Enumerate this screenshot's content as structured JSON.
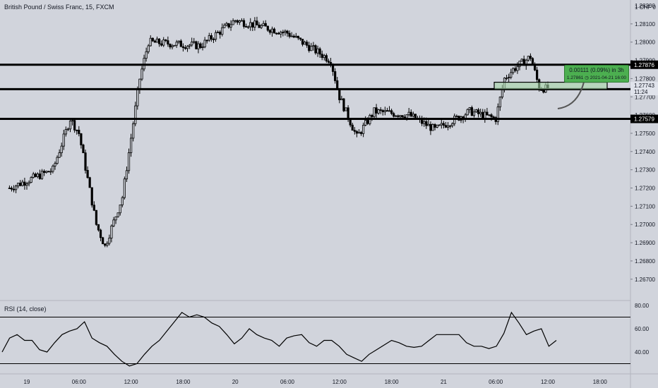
{
  "header": {
    "title": "British Pound / Swiss Franc, 15, FXCM",
    "rsi_title": "RSI (14, close)"
  },
  "price_axis": {
    "currency": "1 CHF 0",
    "ticks": [
      "1.28200",
      "1.28100",
      "1.28000",
      "1.27900",
      "1.27800",
      "1.27700",
      "1.27600",
      "1.27500",
      "1.27400",
      "1.27300",
      "1.27200",
      "1.27100",
      "1.27000",
      "1.26900",
      "1.26800",
      "1.26700"
    ]
  },
  "time_axis": {
    "ticks": [
      "19",
      "06:00",
      "12:00",
      "18:00",
      "20",
      "06:00",
      "12:00",
      "18:00",
      "21",
      "06:00",
      "12:00",
      "18:00"
    ]
  },
  "rsi_axis": {
    "ticks": [
      "80.00",
      "60.00",
      "40.00"
    ],
    "bands": [
      70,
      30
    ]
  },
  "levels": [
    {
      "price": 1.27876,
      "label": "1.27876"
    },
    {
      "price": 1.27742,
      "label": "1.27742"
    },
    {
      "price": 1.27579,
      "label": "1.27579"
    }
  ],
  "current_price": {
    "label": "1.27743",
    "countdown": "11:24"
  },
  "projection": {
    "line1": "0.00111 (0.09%) in 3h",
    "line2_price": "1.27861",
    "line2_date": "2021-04-21",
    "line2_time": "16:00"
  },
  "colors": {
    "background": "#d1d4dc",
    "price_line": "#000000",
    "projection_box": "#4caf50",
    "zone_fill": "#a5d6a7"
  },
  "chart_data": {
    "type": "candlestick",
    "title": "British Pound / Swiss Franc, 15, FXCM",
    "price_range": [
      1.267,
      1.283
    ],
    "candle_anchors": [
      {
        "time": "2021-04-18 22:00",
        "close": 1.272
      },
      {
        "time": "2021-04-19 03:00",
        "close": 1.273
      },
      {
        "time": "2021-04-19 05:00",
        "close": 1.2758
      },
      {
        "time": "2021-04-19 06:00",
        "close": 1.275
      },
      {
        "time": "2021-04-19 08:00",
        "close": 1.27
      },
      {
        "time": "2021-04-19 09:00",
        "close": 1.2688
      },
      {
        "time": "2021-04-19 11:00",
        "close": 1.2715
      },
      {
        "time": "2021-04-19 13:00",
        "close": 1.278
      },
      {
        "time": "2021-04-19 14:00",
        "close": 1.28
      },
      {
        "time": "2021-04-19 20:00",
        "close": 1.2798
      },
      {
        "time": "2021-04-20 00:00",
        "close": 1.2812
      },
      {
        "time": "2021-04-20 06:00",
        "close": 1.2805
      },
      {
        "time": "2021-04-20 11:00",
        "close": 1.279
      },
      {
        "time": "2021-04-20 12:00",
        "close": 1.277
      },
      {
        "time": "2021-04-20 14:00",
        "close": 1.2748
      },
      {
        "time": "2021-04-20 16:00",
        "close": 1.2762
      },
      {
        "time": "2021-04-20 20:00",
        "close": 1.276
      },
      {
        "time": "2021-04-20 23:00",
        "close": 1.2752
      },
      {
        "time": "2021-04-21 03:00",
        "close": 1.2762
      },
      {
        "time": "2021-04-21 06:00",
        "close": 1.2758
      },
      {
        "time": "2021-04-21 07:00",
        "close": 1.278
      },
      {
        "time": "2021-04-21 08:00",
        "close": 1.2785
      },
      {
        "time": "2021-04-21 10:00",
        "close": 1.2792
      },
      {
        "time": "2021-04-21 11:00",
        "close": 1.2775
      },
      {
        "time": "2021-04-21 12:00",
        "close": 1.27743
      }
    ],
    "rsi": {
      "name": "RSI (14, close)",
      "range": [
        25,
        85
      ],
      "levels": [
        70,
        30
      ],
      "values": [
        40,
        52,
        55,
        50,
        50,
        42,
        40,
        48,
        55,
        58,
        60,
        66,
        52,
        48,
        45,
        38,
        32,
        28,
        30,
        38,
        45,
        50,
        58,
        66,
        74,
        70,
        72,
        70,
        65,
        62,
        55,
        47,
        52,
        60,
        55,
        52,
        50,
        45,
        52,
        54,
        55,
        48,
        45,
        50,
        50,
        45,
        38,
        35,
        32,
        38,
        42,
        46,
        50,
        48,
        45,
        44,
        45,
        50,
        55,
        55,
        55,
        55,
        48,
        45,
        45,
        43,
        45,
        56,
        74,
        65,
        55,
        58,
        60,
        45,
        50
      ]
    }
  }
}
